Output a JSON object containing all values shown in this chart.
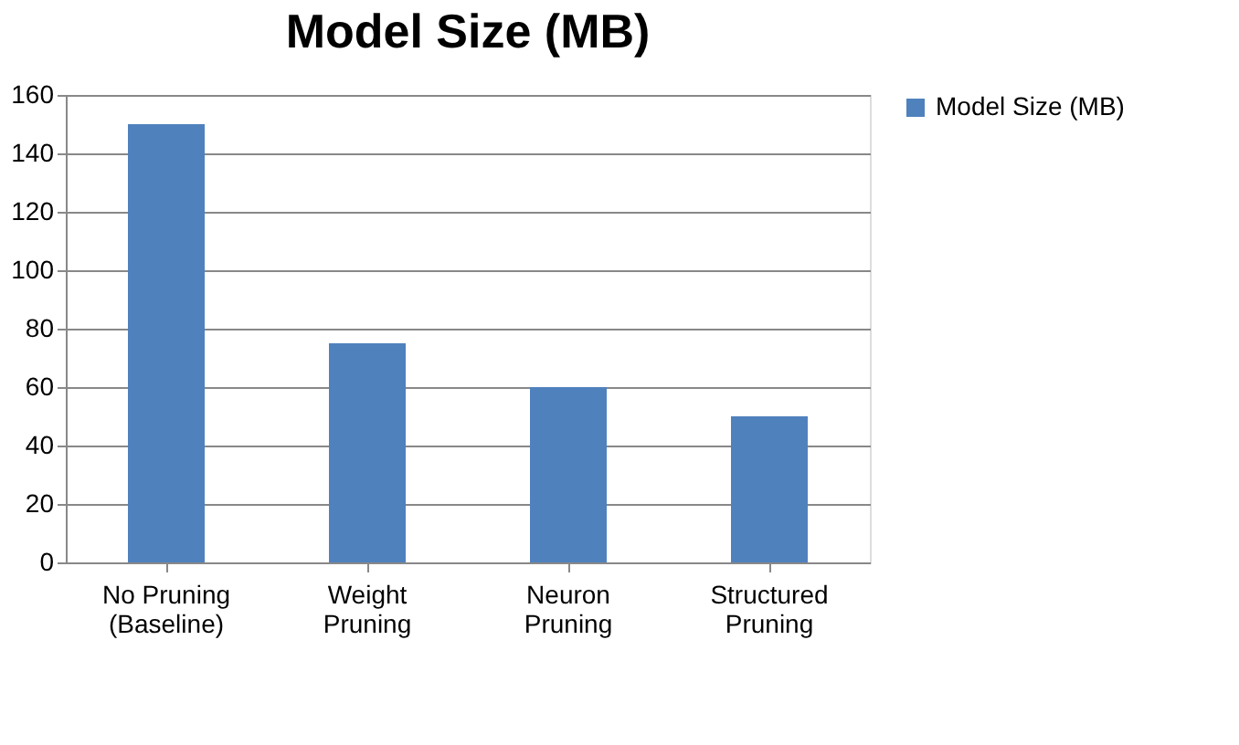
{
  "chart_data": {
    "type": "bar",
    "title": "Model Size (MB)",
    "categories": [
      "No Pruning\n(Baseline)",
      "Weight\nPruning",
      "Neuron\nPruning",
      "Structured\nPruning"
    ],
    "series": [
      {
        "name": "Model Size (MB)",
        "color": "#4f81bd",
        "values": [
          150,
          75,
          60,
          50
        ]
      }
    ],
    "ylim": [
      0,
      160
    ],
    "yticks": [
      0,
      20,
      40,
      60,
      80,
      100,
      120,
      140,
      160
    ],
    "grid": "y",
    "legend": "right"
  }
}
